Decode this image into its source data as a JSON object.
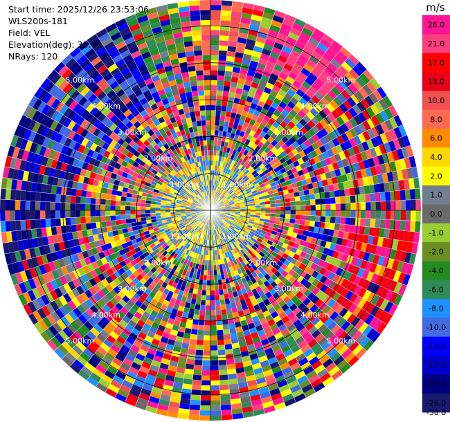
{
  "info": {
    "start_time": "Start time: 2025/12/26 23:53:06",
    "instrument": "WLS200s-181",
    "field": "Field: VEL",
    "elevation": "Elevation(deg): 35.00",
    "nrays": "NRays: 120"
  },
  "chart_data": {
    "type": "heatmap",
    "projection": "polar",
    "field": "VEL",
    "units": "m/s",
    "n_rays": 120,
    "max_range_km": 5.7,
    "range_rings_km": [
      1,
      2,
      3,
      4,
      5
    ],
    "ring_labels": [
      "1.00km",
      "2.00km",
      "3.00km",
      "4.00km",
      "5.00km"
    ],
    "grid": true,
    "colorbar": {
      "title": "m/s",
      "location": "right",
      "ticks": [
        "26.0",
        "21.0",
        "17.0",
        "13.0",
        "10.0",
        "8.0",
        "6.0",
        "4.0",
        "2.0",
        "1.0",
        "0.0",
        "-1.0",
        "-2.0",
        "-4.0",
        "-6.0",
        "-8.0",
        "-10.0",
        "-13.0",
        "-17.0",
        "-21.0",
        "-26.0",
        "-30.0"
      ],
      "colors": [
        "#ff1493",
        "#ff3f7f",
        "#ff0000",
        "#e8001a",
        "#f05050",
        "#ff6a50",
        "#ff8c00",
        "#ffd700",
        "#ffff00",
        "#708090",
        "#696969",
        "#9acd32",
        "#6b8e23",
        "#228b22",
        "#2e8b57",
        "#1e90ff",
        "#4169e1",
        "#0000ff",
        "#0000cd",
        "#000080",
        "#191970"
      ]
    }
  }
}
